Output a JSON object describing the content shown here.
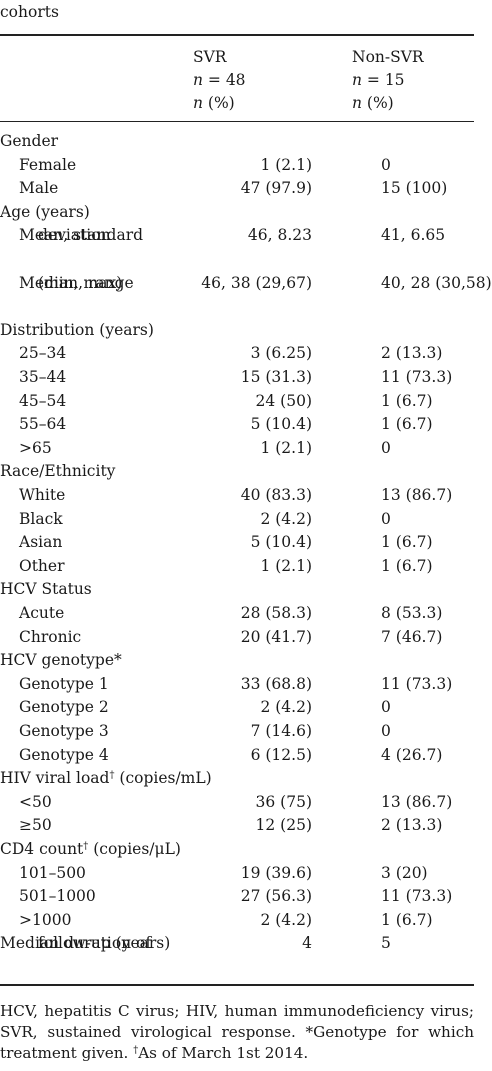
{
  "caption": "cohorts",
  "columns": {
    "svr": {
      "name": "SVR",
      "n_label": "n",
      "n_value": " = 48",
      "pct_n": "n",
      "pct_rest": " (%)"
    },
    "nonsvr": {
      "name": "Non-SVR",
      "n_label": "n",
      "n_value": " = 15",
      "pct_n": "n",
      "pct_rest": " (%)"
    }
  },
  "rows": [
    {
      "label": "Gender",
      "indent": false,
      "svr": "",
      "nonsvr": ""
    },
    {
      "label": "Female",
      "indent": true,
      "svr": "1 (2.1)",
      "nonsvr": "0"
    },
    {
      "label": "Male",
      "indent": true,
      "svr": "47 (97.9)",
      "nonsvr": "15 (100)"
    },
    {
      "label": "Age (years)",
      "indent": false,
      "svr": "",
      "nonsvr": ""
    },
    {
      "label": "Mean, standard",
      "label2": "deviation",
      "indent": true,
      "svr": "46, 8.23",
      "nonsvr": "41, 6.65"
    },
    {
      "label": "Median, range",
      "label2": "(min, max)",
      "indent": true,
      "svr": "46, 38 (29,67)",
      "nonsvr": "40, 28 (30,58)"
    },
    {
      "label": "Distribution (years)",
      "indent": false,
      "svr": "",
      "nonsvr": ""
    },
    {
      "label": "25–34",
      "indent": true,
      "svr": "3 (6.25)",
      "nonsvr": "2 (13.3)"
    },
    {
      "label": "35–44",
      "indent": true,
      "svr": "15 (31.3)",
      "nonsvr": "11 (73.3)"
    },
    {
      "label": "45–54",
      "indent": true,
      "svr": "24 (50)",
      "nonsvr": "1 (6.7)"
    },
    {
      "label": "55–64",
      "indent": true,
      "svr": "5 (10.4)",
      "nonsvr": "1 (6.7)"
    },
    {
      "label": ">65",
      "indent": true,
      "svr": "1 (2.1)",
      "nonsvr": "0"
    },
    {
      "label": "Race/Ethnicity",
      "indent": false,
      "svr": "",
      "nonsvr": ""
    },
    {
      "label": "White",
      "indent": true,
      "svr": "40 (83.3)",
      "nonsvr": "13 (86.7)"
    },
    {
      "label": "Black",
      "indent": true,
      "svr": "2 (4.2)",
      "nonsvr": "0"
    },
    {
      "label": "Asian",
      "indent": true,
      "svr": "5 (10.4)",
      "nonsvr": "1 (6.7)"
    },
    {
      "label": "Other",
      "indent": true,
      "svr": "1 (2.1)",
      "nonsvr": "1 (6.7)"
    },
    {
      "label": "HCV Status",
      "indent": false,
      "svr": "",
      "nonsvr": ""
    },
    {
      "label": "Acute",
      "indent": true,
      "svr": "28 (58.3)",
      "nonsvr": "8 (53.3)"
    },
    {
      "label": "Chronic",
      "indent": true,
      "svr": "20 (41.7)",
      "nonsvr": "7 (46.7)"
    },
    {
      "label": "HCV genotype*",
      "indent": false,
      "svr": "",
      "nonsvr": ""
    },
    {
      "label": "Genotype 1",
      "indent": true,
      "svr": "33 (68.8)",
      "nonsvr": "11 (73.3)"
    },
    {
      "label": "Genotype 2",
      "indent": true,
      "svr": "2 (4.2)",
      "nonsvr": "0"
    },
    {
      "label": "Genotype 3",
      "indent": true,
      "svr": "7 (14.6)",
      "nonsvr": "0"
    },
    {
      "label": "Genotype 4",
      "indent": true,
      "svr": "6 (12.5)",
      "nonsvr": "4 (26.7)"
    },
    {
      "label": "HIV viral load",
      "sup": "†",
      "label_after": " (copies/mL)",
      "indent": false,
      "svr": "",
      "nonsvr": ""
    },
    {
      "label": "<50",
      "indent": true,
      "svr": "36 (75)",
      "nonsvr": "13 (86.7)"
    },
    {
      "label": "≥50",
      "indent": true,
      "svr": "12 (25)",
      "nonsvr": "2 (13.3)"
    },
    {
      "label": "CD4 count",
      "sup": "†",
      "label_after": " (copies/μL)",
      "indent": false,
      "svr": "",
      "nonsvr": ""
    },
    {
      "label": "101–500",
      "indent": true,
      "svr": "19 (39.6)",
      "nonsvr": "3 (20)"
    },
    {
      "label": "501–1000",
      "indent": true,
      "svr": "27 (56.3)",
      "nonsvr": "11 (73.3)"
    },
    {
      "label": ">1000",
      "indent": true,
      "svr": "2 (4.2)",
      "nonsvr": "1 (6.7)"
    },
    {
      "label": "Median duration of",
      "label2": "follow-up (years)",
      "indent": false,
      "svr": "4",
      "nonsvr": "5"
    }
  ],
  "footnote": {
    "text": "HCV, hepatitis C virus; HIV, human immunodeficiency virus; SVR, sustained virological response. *Genotype for which treatment given. ",
    "sup": "†",
    "text_after": "As of March 1st 2014."
  }
}
